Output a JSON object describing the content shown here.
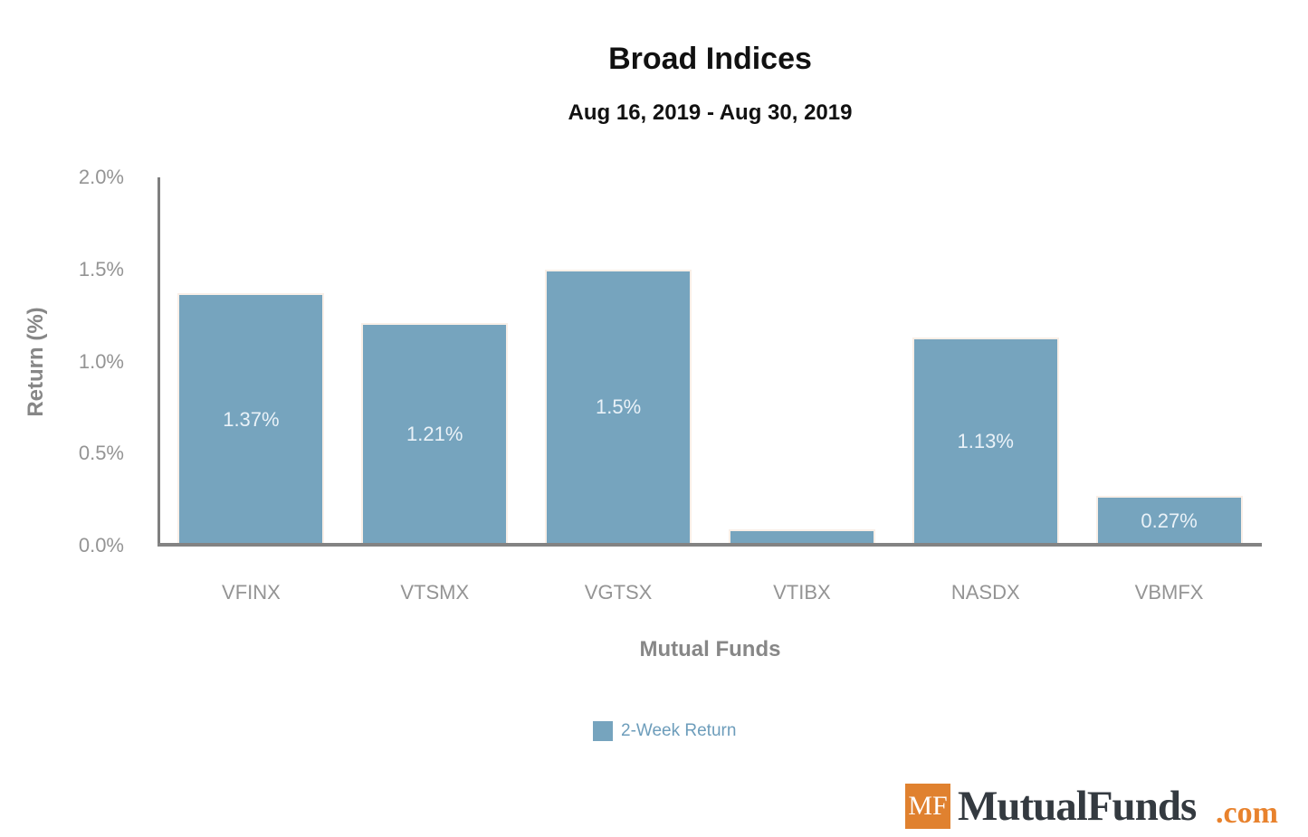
{
  "header": {
    "title": "Broad Indices",
    "subtitle": "Aug 16, 2019 - Aug 30, 2019"
  },
  "chart_data": {
    "type": "bar",
    "title": "Broad Indices",
    "subtitle": "Aug 16, 2019 - Aug 30, 2019",
    "categories": [
      "VFINX",
      "VTSMX",
      "VGTSX",
      "VTIBX",
      "NASDX",
      "VBMFX"
    ],
    "series": [
      {
        "name": "2-Week Return",
        "values": [
          1.37,
          1.21,
          1.5,
          0.09,
          1.13,
          0.27
        ]
      }
    ],
    "data_labels": [
      "1.37%",
      "1.21%",
      "1.5%",
      "",
      "1.13%",
      "0.27%"
    ],
    "xlabel": "Mutual Funds",
    "ylabel": "Return (%)",
    "ylim": [
      0,
      2.0
    ],
    "yticks": [
      {
        "value": 0.0,
        "label": "0.0%"
      },
      {
        "value": 0.5,
        "label": "0.5%"
      },
      {
        "value": 1.0,
        "label": "1.0%"
      },
      {
        "value": 1.5,
        "label": "1.5%"
      },
      {
        "value": 2.0,
        "label": "2.0%"
      }
    ],
    "grid": false,
    "legend": {
      "position": "bottom",
      "label": "2-Week Return"
    },
    "colors": {
      "bar": "#76a4be",
      "bar_border": "#f9efe7",
      "axis_line": "#808080",
      "tick_text": "#949494",
      "axis_title_text": "#878787",
      "bar_label_text": "#eaf2f8",
      "legend_text": "#6d9dbb"
    }
  },
  "branding": {
    "logo_mark": "MF",
    "logo_name": "MutualFunds",
    "logo_tld": ".com",
    "logo_colors": {
      "box": "#e0812f",
      "name": "#343a40",
      "tld": "#e8822d"
    }
  }
}
